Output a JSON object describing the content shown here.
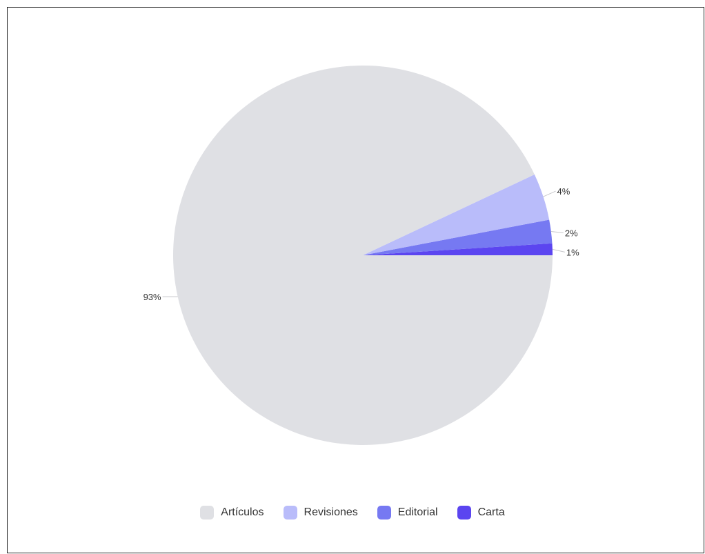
{
  "chart_data": {
    "type": "pie",
    "title": "",
    "legend_position": "bottom",
    "slices": [
      {
        "name": "Artículos",
        "value": 93,
        "label": "93%",
        "color": "#dfe0e4"
      },
      {
        "name": "Revisiones",
        "value": 4,
        "label": "4%",
        "color": "#b9bcfa"
      },
      {
        "name": "Editorial",
        "value": 2,
        "label": "2%",
        "color": "#7679f2"
      },
      {
        "name": "Carta",
        "value": 1,
        "label": "1%",
        "color": "#5b45f0"
      }
    ]
  }
}
